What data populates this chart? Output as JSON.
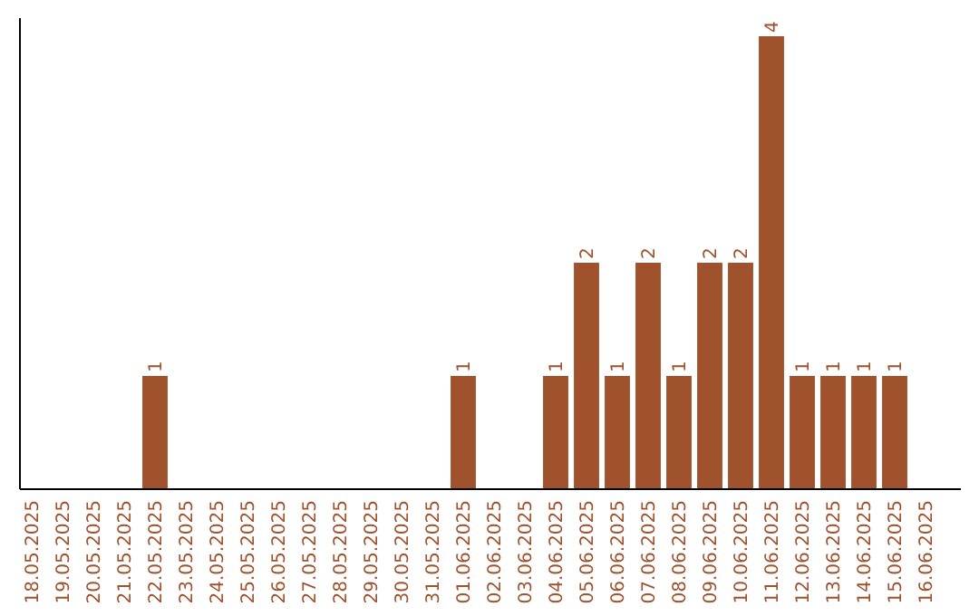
{
  "chart_data": {
    "type": "bar",
    "categories": [
      "18.05.2025",
      "19.05.2025",
      "20.05.2025",
      "21.05.2025",
      "22.05.2025",
      "23.05.2025",
      "24.05.2025",
      "25.05.2025",
      "26.05.2025",
      "27.05.2025",
      "28.05.2025",
      "29.05.2025",
      "30.05.2025",
      "31.05.2025",
      "01.06.2025",
      "02.06.2025",
      "03.06.2025",
      "04.06.2025",
      "05.06.2025",
      "06.06.2025",
      "07.06.2025",
      "08.06.2025",
      "09.06.2025",
      "10.06.2025",
      "11.06.2025",
      "12.06.2025",
      "13.06.2025",
      "14.06.2025",
      "15.06.2025",
      "16.06.2025"
    ],
    "values": [
      0,
      0,
      0,
      0,
      1,
      0,
      0,
      0,
      0,
      0,
      0,
      0,
      0,
      0,
      1,
      0,
      0,
      1,
      2,
      1,
      2,
      1,
      2,
      2,
      4,
      1,
      1,
      1,
      1,
      0
    ],
    "value_labels": [
      null,
      null,
      null,
      null,
      "1",
      null,
      null,
      null,
      null,
      null,
      null,
      null,
      null,
      null,
      "1",
      null,
      null,
      "1",
      "2",
      "1",
      "2",
      "1",
      "2",
      "2",
      "4",
      "1",
      "1",
      "1",
      "1",
      null
    ],
    "color": "#a0522d"
  }
}
